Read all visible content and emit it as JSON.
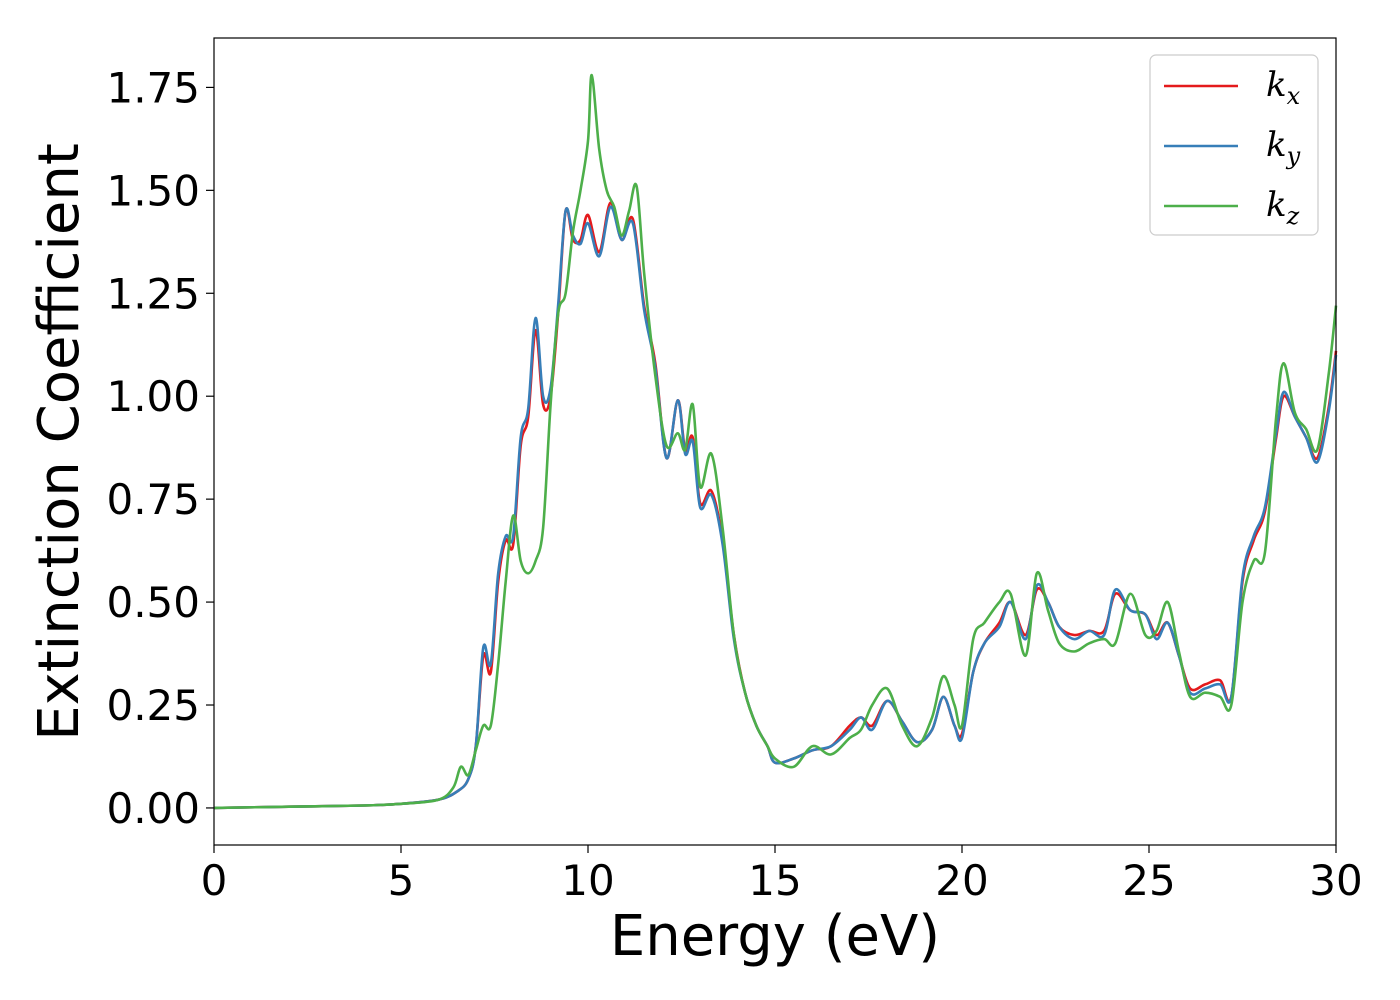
{
  "chart_data": {
    "type": "line",
    "title": "",
    "xlabel": "Energy (eV)",
    "ylabel": "Extinction Coefficient",
    "xlim": [
      0,
      30
    ],
    "ylim": [
      -0.09,
      1.87
    ],
    "xticks": [
      0,
      5,
      10,
      15,
      20,
      25,
      30
    ],
    "yticks": [
      0.0,
      0.25,
      0.5,
      0.75,
      1.0,
      1.25,
      1.5,
      1.75
    ],
    "ytick_labels": [
      "0.00",
      "0.25",
      "0.50",
      "0.75",
      "1.00",
      "1.25",
      "1.50",
      "1.75"
    ],
    "grid": false,
    "legend": "top-right",
    "series": [
      {
        "name": "k",
        "subscript": "x",
        "color": "#e41a1c",
        "points": [
          [
            0,
            0
          ],
          [
            2,
            0.003
          ],
          [
            4,
            0.006
          ],
          [
            5,
            0.01
          ],
          [
            6,
            0.02
          ],
          [
            6.5,
            0.04
          ],
          [
            6.8,
            0.07
          ],
          [
            7,
            0.15
          ],
          [
            7.2,
            0.37
          ],
          [
            7.4,
            0.33
          ],
          [
            7.6,
            0.55
          ],
          [
            7.8,
            0.65
          ],
          [
            8,
            0.64
          ],
          [
            8.2,
            0.88
          ],
          [
            8.4,
            0.95
          ],
          [
            8.6,
            1.16
          ],
          [
            8.8,
            0.98
          ],
          [
            9,
            1.0
          ],
          [
            9.2,
            1.2
          ],
          [
            9.4,
            1.45
          ],
          [
            9.6,
            1.38
          ],
          [
            9.8,
            1.38
          ],
          [
            10,
            1.44
          ],
          [
            10.3,
            1.35
          ],
          [
            10.6,
            1.47
          ],
          [
            10.9,
            1.38
          ],
          [
            11.2,
            1.43
          ],
          [
            11.5,
            1.22
          ],
          [
            11.8,
            1.08
          ],
          [
            12.1,
            0.85
          ],
          [
            12.4,
            0.99
          ],
          [
            12.6,
            0.87
          ],
          [
            12.8,
            0.9
          ],
          [
            13,
            0.74
          ],
          [
            13.3,
            0.77
          ],
          [
            13.6,
            0.65
          ],
          [
            13.9,
            0.42
          ],
          [
            14.2,
            0.28
          ],
          [
            14.5,
            0.2
          ],
          [
            14.8,
            0.15
          ],
          [
            15,
            0.11
          ],
          [
            15.5,
            0.12
          ],
          [
            16,
            0.14
          ],
          [
            16.5,
            0.15
          ],
          [
            17,
            0.2
          ],
          [
            17.3,
            0.22
          ],
          [
            17.6,
            0.2
          ],
          [
            18,
            0.26
          ],
          [
            18.4,
            0.21
          ],
          [
            18.8,
            0.16
          ],
          [
            19.2,
            0.19
          ],
          [
            19.5,
            0.27
          ],
          [
            19.8,
            0.2
          ],
          [
            20,
            0.18
          ],
          [
            20.3,
            0.33
          ],
          [
            20.6,
            0.4
          ],
          [
            21,
            0.45
          ],
          [
            21.3,
            0.5
          ],
          [
            21.7,
            0.42
          ],
          [
            22,
            0.53
          ],
          [
            22.3,
            0.5
          ],
          [
            22.6,
            0.44
          ],
          [
            23,
            0.42
          ],
          [
            23.4,
            0.43
          ],
          [
            23.8,
            0.43
          ],
          [
            24.1,
            0.52
          ],
          [
            24.5,
            0.48
          ],
          [
            24.9,
            0.47
          ],
          [
            25.2,
            0.42
          ],
          [
            25.5,
            0.45
          ],
          [
            25.8,
            0.37
          ],
          [
            26.1,
            0.29
          ],
          [
            26.5,
            0.3
          ],
          [
            26.9,
            0.31
          ],
          [
            27.2,
            0.27
          ],
          [
            27.5,
            0.55
          ],
          [
            27.8,
            0.65
          ],
          [
            28.1,
            0.72
          ],
          [
            28.4,
            0.9
          ],
          [
            28.6,
            1.0
          ],
          [
            28.9,
            0.95
          ],
          [
            29.2,
            0.9
          ],
          [
            29.5,
            0.85
          ],
          [
            29.8,
            0.97
          ],
          [
            30,
            1.11
          ]
        ]
      },
      {
        "name": "k",
        "subscript": "y",
        "color": "#377eb8",
        "points": [
          [
            0,
            0
          ],
          [
            2,
            0.003
          ],
          [
            4,
            0.006
          ],
          [
            5,
            0.01
          ],
          [
            6,
            0.02
          ],
          [
            6.5,
            0.04
          ],
          [
            6.8,
            0.07
          ],
          [
            7,
            0.15
          ],
          [
            7.2,
            0.39
          ],
          [
            7.4,
            0.35
          ],
          [
            7.6,
            0.57
          ],
          [
            7.8,
            0.66
          ],
          [
            8,
            0.66
          ],
          [
            8.2,
            0.9
          ],
          [
            8.4,
            0.97
          ],
          [
            8.6,
            1.19
          ],
          [
            8.8,
            1.0
          ],
          [
            9,
            1.02
          ],
          [
            9.2,
            1.22
          ],
          [
            9.4,
            1.45
          ],
          [
            9.6,
            1.39
          ],
          [
            9.8,
            1.37
          ],
          [
            10,
            1.42
          ],
          [
            10.3,
            1.34
          ],
          [
            10.6,
            1.46
          ],
          [
            10.9,
            1.38
          ],
          [
            11.2,
            1.42
          ],
          [
            11.5,
            1.21
          ],
          [
            11.8,
            1.07
          ],
          [
            12.1,
            0.85
          ],
          [
            12.4,
            0.99
          ],
          [
            12.6,
            0.86
          ],
          [
            12.8,
            0.89
          ],
          [
            13,
            0.73
          ],
          [
            13.3,
            0.76
          ],
          [
            13.6,
            0.64
          ],
          [
            13.9,
            0.41
          ],
          [
            14.2,
            0.28
          ],
          [
            14.5,
            0.2
          ],
          [
            14.8,
            0.15
          ],
          [
            15,
            0.11
          ],
          [
            15.5,
            0.12
          ],
          [
            16,
            0.14
          ],
          [
            16.5,
            0.15
          ],
          [
            17,
            0.19
          ],
          [
            17.3,
            0.22
          ],
          [
            17.6,
            0.19
          ],
          [
            18,
            0.26
          ],
          [
            18.4,
            0.21
          ],
          [
            18.8,
            0.16
          ],
          [
            19.2,
            0.19
          ],
          [
            19.5,
            0.27
          ],
          [
            19.8,
            0.2
          ],
          [
            20,
            0.17
          ],
          [
            20.3,
            0.33
          ],
          [
            20.6,
            0.4
          ],
          [
            21,
            0.44
          ],
          [
            21.3,
            0.5
          ],
          [
            21.7,
            0.41
          ],
          [
            22,
            0.54
          ],
          [
            22.3,
            0.5
          ],
          [
            22.6,
            0.44
          ],
          [
            23,
            0.41
          ],
          [
            23.4,
            0.43
          ],
          [
            23.8,
            0.42
          ],
          [
            24.1,
            0.53
          ],
          [
            24.5,
            0.48
          ],
          [
            24.9,
            0.47
          ],
          [
            25.2,
            0.41
          ],
          [
            25.5,
            0.45
          ],
          [
            25.8,
            0.37
          ],
          [
            26.1,
            0.28
          ],
          [
            26.5,
            0.29
          ],
          [
            26.9,
            0.3
          ],
          [
            27.2,
            0.27
          ],
          [
            27.5,
            0.56
          ],
          [
            27.8,
            0.66
          ],
          [
            28.1,
            0.73
          ],
          [
            28.4,
            0.91
          ],
          [
            28.6,
            1.01
          ],
          [
            28.9,
            0.95
          ],
          [
            29.2,
            0.9
          ],
          [
            29.5,
            0.84
          ],
          [
            29.8,
            0.96
          ],
          [
            30,
            1.1
          ]
        ]
      },
      {
        "name": "k",
        "subscript": "z",
        "color": "#4daf4a",
        "points": [
          [
            0,
            0
          ],
          [
            2,
            0.003
          ],
          [
            4,
            0.006
          ],
          [
            5,
            0.01
          ],
          [
            6,
            0.02
          ],
          [
            6.4,
            0.05
          ],
          [
            6.6,
            0.1
          ],
          [
            6.8,
            0.08
          ],
          [
            7,
            0.14
          ],
          [
            7.2,
            0.2
          ],
          [
            7.4,
            0.2
          ],
          [
            7.6,
            0.35
          ],
          [
            7.8,
            0.55
          ],
          [
            8,
            0.71
          ],
          [
            8.2,
            0.6
          ],
          [
            8.4,
            0.57
          ],
          [
            8.6,
            0.6
          ],
          [
            8.8,
            0.68
          ],
          [
            9,
            0.98
          ],
          [
            9.2,
            1.2
          ],
          [
            9.4,
            1.25
          ],
          [
            9.6,
            1.4
          ],
          [
            9.8,
            1.5
          ],
          [
            10,
            1.62
          ],
          [
            10.1,
            1.78
          ],
          [
            10.3,
            1.6
          ],
          [
            10.5,
            1.5
          ],
          [
            10.7,
            1.46
          ],
          [
            10.9,
            1.39
          ],
          [
            11.1,
            1.45
          ],
          [
            11.3,
            1.51
          ],
          [
            11.5,
            1.3
          ],
          [
            11.8,
            1.05
          ],
          [
            12.1,
            0.88
          ],
          [
            12.4,
            0.91
          ],
          [
            12.6,
            0.87
          ],
          [
            12.8,
            0.98
          ],
          [
            13,
            0.78
          ],
          [
            13.3,
            0.86
          ],
          [
            13.6,
            0.68
          ],
          [
            13.9,
            0.42
          ],
          [
            14.2,
            0.28
          ],
          [
            14.5,
            0.2
          ],
          [
            14.8,
            0.15
          ],
          [
            15,
            0.12
          ],
          [
            15.5,
            0.1
          ],
          [
            16,
            0.15
          ],
          [
            16.5,
            0.13
          ],
          [
            17,
            0.17
          ],
          [
            17.3,
            0.19
          ],
          [
            17.6,
            0.25
          ],
          [
            18,
            0.29
          ],
          [
            18.4,
            0.2
          ],
          [
            18.8,
            0.15
          ],
          [
            19.2,
            0.22
          ],
          [
            19.5,
            0.32
          ],
          [
            19.8,
            0.25
          ],
          [
            20,
            0.2
          ],
          [
            20.3,
            0.41
          ],
          [
            20.6,
            0.45
          ],
          [
            21,
            0.5
          ],
          [
            21.3,
            0.52
          ],
          [
            21.7,
            0.37
          ],
          [
            22,
            0.57
          ],
          [
            22.3,
            0.48
          ],
          [
            22.6,
            0.4
          ],
          [
            23,
            0.38
          ],
          [
            23.4,
            0.4
          ],
          [
            23.8,
            0.41
          ],
          [
            24.1,
            0.4
          ],
          [
            24.5,
            0.52
          ],
          [
            24.9,
            0.42
          ],
          [
            25.2,
            0.43
          ],
          [
            25.5,
            0.5
          ],
          [
            25.8,
            0.38
          ],
          [
            26.1,
            0.27
          ],
          [
            26.5,
            0.28
          ],
          [
            26.9,
            0.27
          ],
          [
            27.2,
            0.25
          ],
          [
            27.5,
            0.5
          ],
          [
            27.8,
            0.6
          ],
          [
            28.1,
            0.62
          ],
          [
            28.4,
            0.95
          ],
          [
            28.6,
            1.08
          ],
          [
            28.9,
            0.96
          ],
          [
            29.2,
            0.92
          ],
          [
            29.5,
            0.87
          ],
          [
            29.8,
            1.05
          ],
          [
            30,
            1.22
          ]
        ]
      }
    ]
  }
}
